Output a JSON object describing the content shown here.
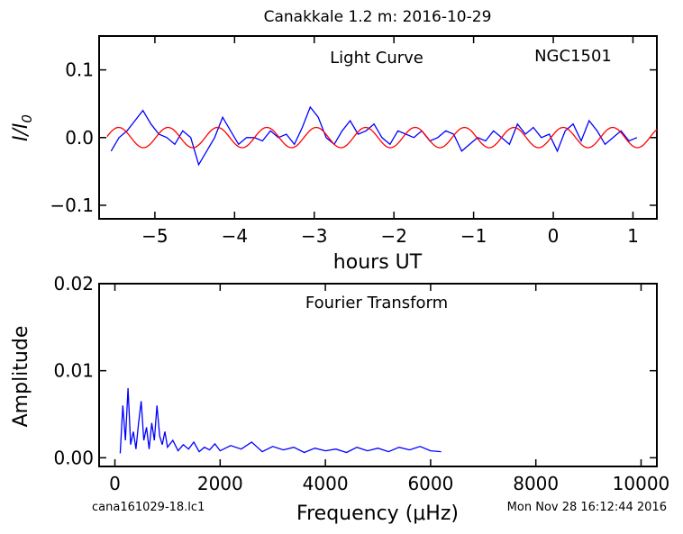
{
  "figure": {
    "title": "Canakkale 1.2 m:  2016-10-29",
    "file_label": "cana161029-18.lc1",
    "timestamp_label": "Mon Nov 28 16:12:44 2016"
  },
  "chart_data": [
    {
      "type": "line",
      "annotation_left": "Light Curve",
      "annotation_right": "NGC1501",
      "xlabel": "hours UT",
      "ylabel": "I/I0",
      "xlim": [
        -5.7,
        1.3
      ],
      "ylim": [
        -0.12,
        0.15
      ],
      "xticks": [
        -5,
        -4,
        -3,
        -2,
        -1,
        0,
        1
      ],
      "xtick_labels": [
        "−5",
        "−4",
        "−3",
        "−2",
        "−1",
        "0",
        "1"
      ],
      "yticks": [
        -0.1,
        0.0,
        0.1
      ],
      "ytick_labels": [
        "−0.1",
        "0.0",
        "0.1"
      ],
      "series": [
        {
          "color": "#0000ff",
          "x": [
            -5.55,
            -5.45,
            -5.35,
            -5.25,
            -5.15,
            -5.05,
            -4.95,
            -4.85,
            -4.75,
            -4.65,
            -4.55,
            -4.45,
            -4.35,
            -4.25,
            -4.15,
            -4.05,
            -3.95,
            -3.85,
            -3.75,
            -3.65,
            -3.55,
            -3.45,
            -3.35,
            -3.25,
            -3.15,
            -3.05,
            -2.95,
            -2.85,
            -2.75,
            -2.65,
            -2.55,
            -2.45,
            -2.35,
            -2.25,
            -2.15,
            -2.05,
            -1.95,
            -1.85,
            -1.75,
            -1.65,
            -1.55,
            -1.45,
            -1.35,
            -1.25,
            -1.15,
            -1.05,
            -0.95,
            -0.85,
            -0.75,
            -0.65,
            -0.55,
            -0.45,
            -0.35,
            -0.25,
            -0.15,
            -0.05,
            0.05,
            0.15,
            0.25,
            0.35,
            0.45,
            0.55,
            0.65,
            0.75,
            0.85,
            0.95,
            1.05
          ],
          "y": [
            -0.02,
            0.0,
            0.01,
            0.025,
            0.04,
            0.02,
            0.005,
            0.0,
            -0.01,
            0.01,
            0.0,
            -0.04,
            -0.02,
            0.0,
            0.03,
            0.01,
            -0.01,
            0.0,
            0.0,
            -0.005,
            0.01,
            0.0,
            0.005,
            -0.01,
            0.015,
            0.045,
            0.03,
            0.0,
            -0.01,
            0.01,
            0.025,
            0.005,
            0.01,
            0.02,
            0.0,
            -0.01,
            0.01,
            0.005,
            0.0,
            0.01,
            -0.005,
            0.0,
            0.01,
            0.005,
            -0.02,
            -0.01,
            0.0,
            -0.005,
            0.01,
            0.0,
            -0.01,
            0.02,
            0.005,
            0.015,
            0.0,
            0.005,
            -0.02,
            0.01,
            0.02,
            -0.005,
            0.025,
            0.01,
            -0.01,
            0.0,
            0.01,
            -0.005,
            0.0
          ]
        },
        {
          "color": "#ff0000",
          "model": "sinusoid",
          "x_start": -5.6,
          "x_end": 1.3,
          "amplitude": 0.015,
          "period_hours": 0.62,
          "phase": 0.3
        }
      ]
    },
    {
      "type": "line",
      "annotation": "Fourier Transform",
      "xlabel": "Frequency (μHz)",
      "ylabel": "Amplitude",
      "xlim": [
        -300,
        10300
      ],
      "ylim": [
        -0.001,
        0.02
      ],
      "xticks": [
        0,
        2000,
        4000,
        6000,
        8000,
        10000
      ],
      "xtick_labels": [
        "0",
        "2000",
        "4000",
        "6000",
        "8000",
        "10000"
      ],
      "yticks": [
        0.0,
        0.01,
        0.02
      ],
      "ytick_labels": [
        "0.00",
        "0.01",
        "0.02"
      ],
      "series": [
        {
          "color": "#0000ff",
          "x": [
            100,
            150,
            200,
            250,
            300,
            350,
            400,
            450,
            500,
            550,
            600,
            650,
            700,
            750,
            800,
            850,
            900,
            950,
            1000,
            1100,
            1200,
            1300,
            1400,
            1500,
            1600,
            1700,
            1800,
            1900,
            2000,
            2200,
            2400,
            2600,
            2800,
            3000,
            3200,
            3400,
            3600,
            3800,
            4000,
            4200,
            4400,
            4600,
            4800,
            5000,
            5200,
            5400,
            5600,
            5800,
            6000,
            6200
          ],
          "y": [
            0.0005,
            0.006,
            0.002,
            0.008,
            0.0015,
            0.003,
            0.001,
            0.004,
            0.0065,
            0.002,
            0.0035,
            0.001,
            0.004,
            0.002,
            0.006,
            0.0025,
            0.0015,
            0.003,
            0.0012,
            0.002,
            0.0008,
            0.0015,
            0.001,
            0.0018,
            0.0007,
            0.0012,
            0.0009,
            0.0016,
            0.0008,
            0.0014,
            0.001,
            0.0018,
            0.0007,
            0.0013,
            0.0009,
            0.0012,
            0.0006,
            0.0011,
            0.0008,
            0.001,
            0.0006,
            0.0012,
            0.0008,
            0.0011,
            0.0007,
            0.0012,
            0.0009,
            0.0013,
            0.0008,
            0.0007
          ]
        }
      ]
    }
  ]
}
